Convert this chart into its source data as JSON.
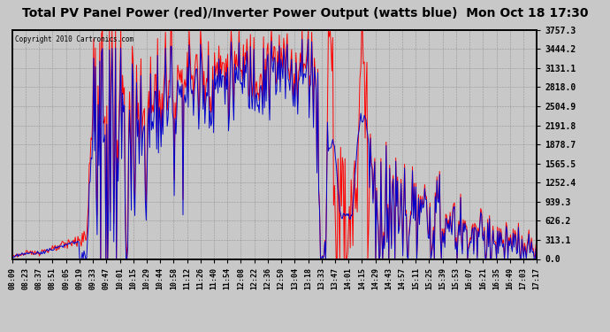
{
  "title": "Total PV Panel Power (red)/Inverter Power Output (watts blue)  Mon Oct 18 17:30",
  "copyright": "Copyright 2010 Cartronics.com",
  "background_color": "#c8c8c8",
  "plot_bg_color": "#c8c8c8",
  "y_ticks": [
    0.0,
    313.1,
    626.2,
    939.3,
    1252.4,
    1565.5,
    1878.7,
    2191.8,
    2504.9,
    2818.0,
    3131.1,
    3444.2,
    3757.3
  ],
  "x_labels": [
    "08:09",
    "08:23",
    "08:37",
    "08:51",
    "09:05",
    "09:19",
    "09:33",
    "09:47",
    "10:01",
    "10:15",
    "10:29",
    "10:44",
    "10:58",
    "11:12",
    "11:26",
    "11:40",
    "11:54",
    "12:08",
    "12:22",
    "12:36",
    "12:50",
    "13:04",
    "13:18",
    "13:33",
    "13:47",
    "14:01",
    "14:15",
    "14:29",
    "14:43",
    "14:57",
    "15:11",
    "15:25",
    "15:39",
    "15:53",
    "16:07",
    "16:21",
    "16:35",
    "16:49",
    "17:03",
    "17:17"
  ],
  "ylim": [
    0.0,
    3757.3
  ],
  "red_color": "#ff0000",
  "blue_color": "#0000cc",
  "grid_color": "#888888",
  "title_fontsize": 10,
  "figwidth": 6.9,
  "figheight": 3.75,
  "dpi": 100
}
